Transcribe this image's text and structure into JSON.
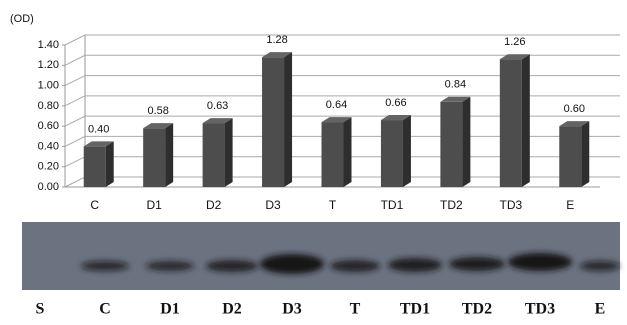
{
  "chart_data": {
    "type": "bar3d",
    "y_label": "(OD)",
    "categories": [
      "C",
      "D1",
      "D2",
      "D3",
      "T",
      "TD1",
      "TD2",
      "TD3",
      "E"
    ],
    "values": [
      0.4,
      0.58,
      0.63,
      1.28,
      0.64,
      0.66,
      0.84,
      1.26,
      0.6
    ],
    "value_labels": [
      "0.40",
      "0.58",
      "0.63",
      "1.28",
      "0.64",
      "0.66",
      "0.84",
      "1.26",
      "0.60"
    ],
    "color": "#4d4d4d",
    "grid": true,
    "ylim": [
      0,
      1.4
    ],
    "yticks": [
      {
        "value": 0,
        "label": "0.00"
      },
      {
        "value": 0.2,
        "label": "0.20"
      },
      {
        "value": 0.4,
        "label": "0.40"
      },
      {
        "value": 0.6,
        "label": "0.60"
      },
      {
        "value": 0.8,
        "label": "0.80"
      },
      {
        "value": 1.0,
        "label": "1.00"
      },
      {
        "value": 1.2,
        "label": "1.20"
      },
      {
        "value": 1.4,
        "label": "1.40"
      }
    ]
  },
  "blot": {
    "lanes": [
      "S",
      "C",
      "D1",
      "D2",
      "D3",
      "T",
      "TD1",
      "TD2",
      "TD3",
      "E"
    ]
  }
}
